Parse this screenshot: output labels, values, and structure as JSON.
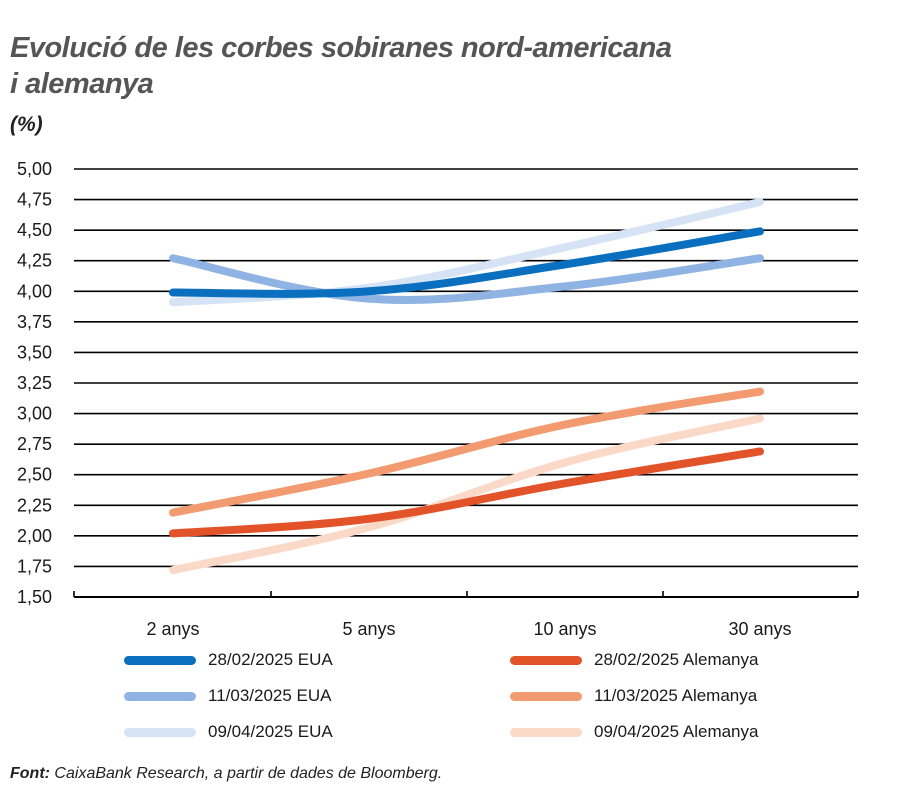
{
  "header": {
    "title_line1": "Evolució de les corbes sobiranes nord-americana",
    "title_line2": "i alemanya",
    "unit": "(%)"
  },
  "footer": {
    "source_label": "Font:",
    "source_text": " CaixaBank Research, a partir de dades de Bloomberg."
  },
  "legend": [
    {
      "label": "28/02/2025 EUA",
      "color": "#0A6FBE"
    },
    {
      "label": "11/03/2025 EUA",
      "color": "#8FB3E3"
    },
    {
      "label": "09/04/2025 EUA",
      "color": "#D6E3F5"
    },
    {
      "label": "28/02/2025 Alemanya",
      "color": "#E2532A"
    },
    {
      "label": "11/03/2025 Alemanya",
      "color": "#F29A70"
    },
    {
      "label": "09/04/2025 Alemanya",
      "color": "#FBD9C8"
    }
  ],
  "chart_data": {
    "type": "line",
    "title": "Evolució de les corbes sobiranes nord-americana i alemanya",
    "xlabel": "",
    "ylabel": "(%)",
    "categories": [
      "2 anys",
      "5 anys",
      "10 anys",
      "30 anys"
    ],
    "ylim": [
      1.5,
      5.0
    ],
    "yticks": [
      "5,00",
      "4,75",
      "4,50",
      "4,25",
      "4,00",
      "3,75",
      "3,50",
      "3,25",
      "3,00",
      "2,75",
      "2,50",
      "2,25",
      "2,00",
      "1,75",
      "1,50"
    ],
    "grid": true,
    "legend_position": "bottom",
    "series": [
      {
        "name": "28/02/2025 EUA",
        "color": "#0A6FBE",
        "values": [
          3.99,
          4.0,
          4.22,
          4.49
        ]
      },
      {
        "name": "11/03/2025 EUA",
        "color": "#8FB3E3",
        "values": [
          4.27,
          3.94,
          4.04,
          4.27
        ]
      },
      {
        "name": "09/04/2025 EUA",
        "color": "#D6E3F5",
        "values": [
          3.91,
          4.03,
          4.36,
          4.73
        ]
      },
      {
        "name": "28/02/2025 Alemanya",
        "color": "#E2532A",
        "values": [
          2.02,
          2.14,
          2.43,
          2.69
        ]
      },
      {
        "name": "11/03/2025 Alemanya",
        "color": "#F29A70",
        "values": [
          2.19,
          2.51,
          2.91,
          3.18
        ]
      },
      {
        "name": "09/04/2025 Alemanya",
        "color": "#FBD9C8",
        "values": [
          1.72,
          2.07,
          2.6,
          2.96
        ]
      }
    ]
  }
}
